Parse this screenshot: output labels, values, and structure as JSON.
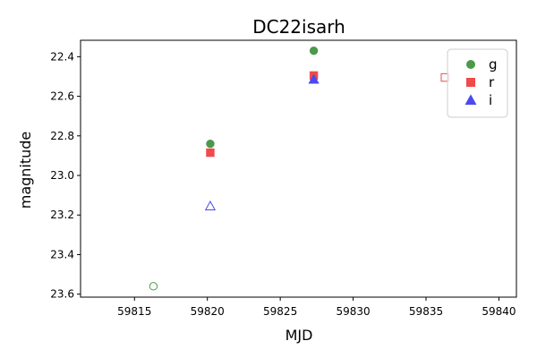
{
  "chart_data": {
    "type": "scatter",
    "title": "DC22isarh",
    "xlabel": "MJD",
    "ylabel": "magnitude",
    "xlim": [
      59811.3,
      59841.2
    ],
    "ylim": [
      22.317,
      23.615
    ],
    "y_inverted": true,
    "x_ticks": [
      59815,
      59820,
      59825,
      59830,
      59835,
      59840
    ],
    "y_ticks": [
      22.4,
      22.6,
      22.8,
      23.0,
      23.2,
      23.4,
      23.6
    ],
    "grid": false,
    "legend_position": "top-right",
    "series": [
      {
        "name": "g",
        "color": "#4a9a4a",
        "marker": "circle",
        "points": [
          {
            "x": 59816.3,
            "y": 23.56,
            "filled": false
          },
          {
            "x": 59820.2,
            "y": 22.84,
            "filled": true
          },
          {
            "x": 59827.3,
            "y": 22.37,
            "filled": true
          }
        ]
      },
      {
        "name": "r",
        "color": "#f04a4a",
        "marker": "square",
        "points": [
          {
            "x": 59820.2,
            "y": 22.885,
            "filled": true
          },
          {
            "x": 59827.3,
            "y": 22.495,
            "filled": true
          },
          {
            "x": 59836.3,
            "y": 22.505,
            "filled": false
          }
        ]
      },
      {
        "name": "i",
        "color": "#4a4af0",
        "marker": "triangle",
        "points": [
          {
            "x": 59820.2,
            "y": 23.155,
            "filled": false
          },
          {
            "x": 59827.3,
            "y": 22.515,
            "filled": true
          }
        ]
      }
    ]
  }
}
